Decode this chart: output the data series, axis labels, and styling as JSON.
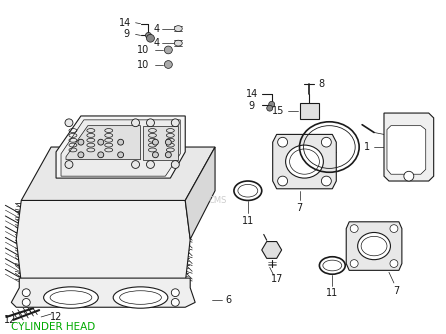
{
  "title": "CYLINDER HEAD",
  "title_color": "#00aa00",
  "bg_color": "#ffffff",
  "line_color": "#1a1a1a",
  "fig_width": 4.46,
  "fig_height": 3.34,
  "dpi": 100
}
